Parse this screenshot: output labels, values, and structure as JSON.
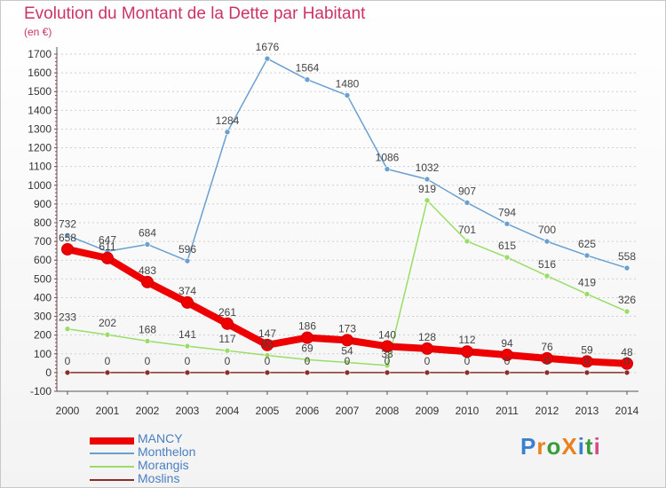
{
  "header": {
    "title": "Evolution du Montant de la Dette par Habitant",
    "subtitle": "(en €)"
  },
  "logo": {
    "text": "ProXiti",
    "letter_colors": [
      "#3b7fd1",
      "#e8821e",
      "#3a9b3a",
      "#e8821e",
      "#3b7fd1",
      "#3a9b3a",
      "#d94a8a"
    ]
  },
  "chart_data": {
    "type": "line",
    "title": "Evolution du Montant de la Dette par Habitant",
    "subtitle": "(en €)",
    "xlabel": "",
    "ylabel": "",
    "x": [
      "2000",
      "2001",
      "2002",
      "2003",
      "2004",
      "2005",
      "2006",
      "2007",
      "2008",
      "2009",
      "2010",
      "2011",
      "2012",
      "2013",
      "2014"
    ],
    "ylim": [
      -100,
      1700
    ],
    "yticks": [
      -100,
      0,
      100,
      200,
      300,
      400,
      500,
      600,
      700,
      800,
      900,
      1000,
      1100,
      1200,
      1300,
      1400,
      1500,
      1600,
      1700
    ],
    "grid": "horizontal dashed",
    "legend_position": "bottom-left",
    "series": [
      {
        "name": "MANCY",
        "color": "#ee0000",
        "values": [
          658,
          611,
          483,
          374,
          261,
          147,
          186,
          173,
          140,
          128,
          112,
          94,
          76,
          59,
          48
        ]
      },
      {
        "name": "Monthelon",
        "color": "#6aa0d0",
        "values": [
          732,
          647,
          684,
          596,
          1284,
          1676,
          1564,
          1480,
          1086,
          1032,
          907,
          794,
          700,
          625,
          558
        ]
      },
      {
        "name": "Morangis",
        "color": "#99dd66",
        "values": [
          233,
          202,
          168,
          141,
          117,
          92,
          69,
          54,
          38,
          919,
          701,
          615,
          516,
          419,
          326
        ]
      },
      {
        "name": "Moslins",
        "color": "#8b2c2c",
        "values": [
          0,
          0,
          0,
          0,
          0,
          0,
          0,
          0,
          0,
          0,
          0,
          0,
          0,
          0,
          0
        ]
      }
    ]
  }
}
